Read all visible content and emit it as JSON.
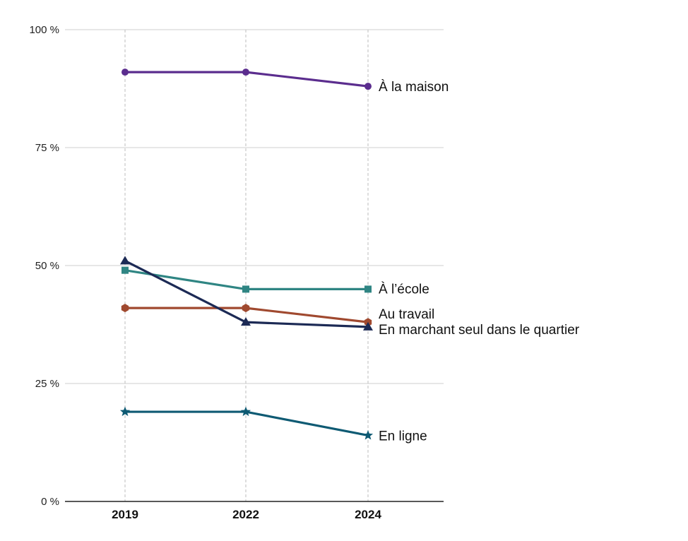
{
  "chart_data": {
    "type": "line",
    "categories": [
      "2019",
      "2022",
      "2024"
    ],
    "ylim": [
      0,
      100
    ],
    "yticks": [
      0,
      25,
      50,
      75,
      100
    ],
    "ytick_labels": [
      "0 %",
      "25 %",
      "50 %",
      "75 %",
      "100 %"
    ],
    "grid": "horizontal lines plus vertical dashed lines at each year",
    "legend": "labels at end of lines",
    "series": [
      {
        "name": "À la maison",
        "values": [
          91,
          91,
          88
        ],
        "color": "#5b2d8e",
        "marker": "circle"
      },
      {
        "name": "À l’école",
        "values": [
          49,
          45,
          45
        ],
        "color": "#2f8583",
        "marker": "square"
      },
      {
        "name": "Au travail",
        "values": [
          41,
          41,
          38
        ],
        "color": "#a0492f",
        "marker": "hexagon"
      },
      {
        "name": "En marchant seul dans le quartier",
        "values": [
          51,
          38,
          37
        ],
        "color": "#1c2a55",
        "marker": "triangle"
      },
      {
        "name": "En ligne",
        "values": [
          19,
          19,
          14
        ],
        "color": "#0e5a73",
        "marker": "star"
      }
    ]
  }
}
